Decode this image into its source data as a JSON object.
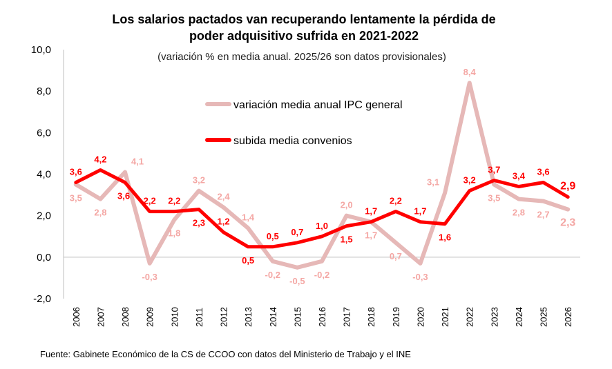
{
  "chart_data": {
    "type": "line",
    "title_line1": "Los salarios pactados van recuperando lentamente la pérdida de",
    "title_line2": "poder adquisitivo sufrida en 2021-2022",
    "subtitle": "(variación % en media anual. 2025/26 son datos provisionales)",
    "source": "Fuente: Gabinete Económico de la CS de CCOO con datos del Ministerio de Trabajo y el INE",
    "categories": [
      "2006",
      "2007",
      "2008",
      "2009",
      "2010",
      "2011",
      "2012",
      "2013",
      "2014",
      "2015",
      "2016",
      "2017",
      "2018",
      "2019",
      "2020",
      "2021",
      "2022",
      "2023",
      "2024",
      "2025",
      "2026"
    ],
    "ylim": [
      -2.0,
      10.0
    ],
    "yticks": [
      "-2,0",
      "0,0",
      "2,0",
      "4,0",
      "6,0",
      "8,0",
      "10,0"
    ],
    "ytick_values": [
      -2,
      0,
      2,
      4,
      6,
      8,
      10
    ],
    "grid": false,
    "legend_position": "top-center",
    "series": [
      {
        "name": "variación media anual IPC general",
        "color": "#e6b8b7",
        "label_color": "#f4a7a4",
        "values": [
          3.5,
          2.8,
          4.1,
          -0.3,
          1.8,
          3.2,
          2.4,
          1.4,
          -0.2,
          -0.5,
          -0.2,
          2.0,
          1.7,
          0.7,
          -0.3,
          3.1,
          8.4,
          3.5,
          2.8,
          2.7,
          2.3
        ],
        "labels": [
          "3,5",
          "2,8",
          "4,1",
          "-0,3",
          "1,8",
          "3,2",
          "2,4",
          "1,4",
          "-0,2",
          "-0,5",
          "-0,2",
          "2,0",
          "1,7",
          "0,7",
          "-0,3",
          "3,1",
          "8,4",
          "3,5",
          "2,8",
          "2,7",
          "2,3"
        ]
      },
      {
        "name": "subida media convenios",
        "color": "#ff0000",
        "label_color": "#ff0000",
        "values": [
          3.6,
          4.2,
          3.6,
          2.2,
          2.2,
          2.3,
          1.2,
          0.5,
          0.5,
          0.7,
          1.0,
          1.5,
          1.7,
          2.2,
          1.7,
          1.6,
          3.2,
          3.7,
          3.4,
          3.6,
          2.9
        ],
        "labels": [
          "3,6",
          "4,2",
          "3,6",
          "2,2",
          "2,2",
          "2,3",
          "1,2",
          "0,5",
          "0,5",
          "0,7",
          "1,0",
          "1,5",
          "1,7",
          "2,2",
          "1,7",
          "1,6",
          "3,2",
          "3,7",
          "3,4",
          "3,6",
          "2,9"
        ]
      }
    ]
  }
}
